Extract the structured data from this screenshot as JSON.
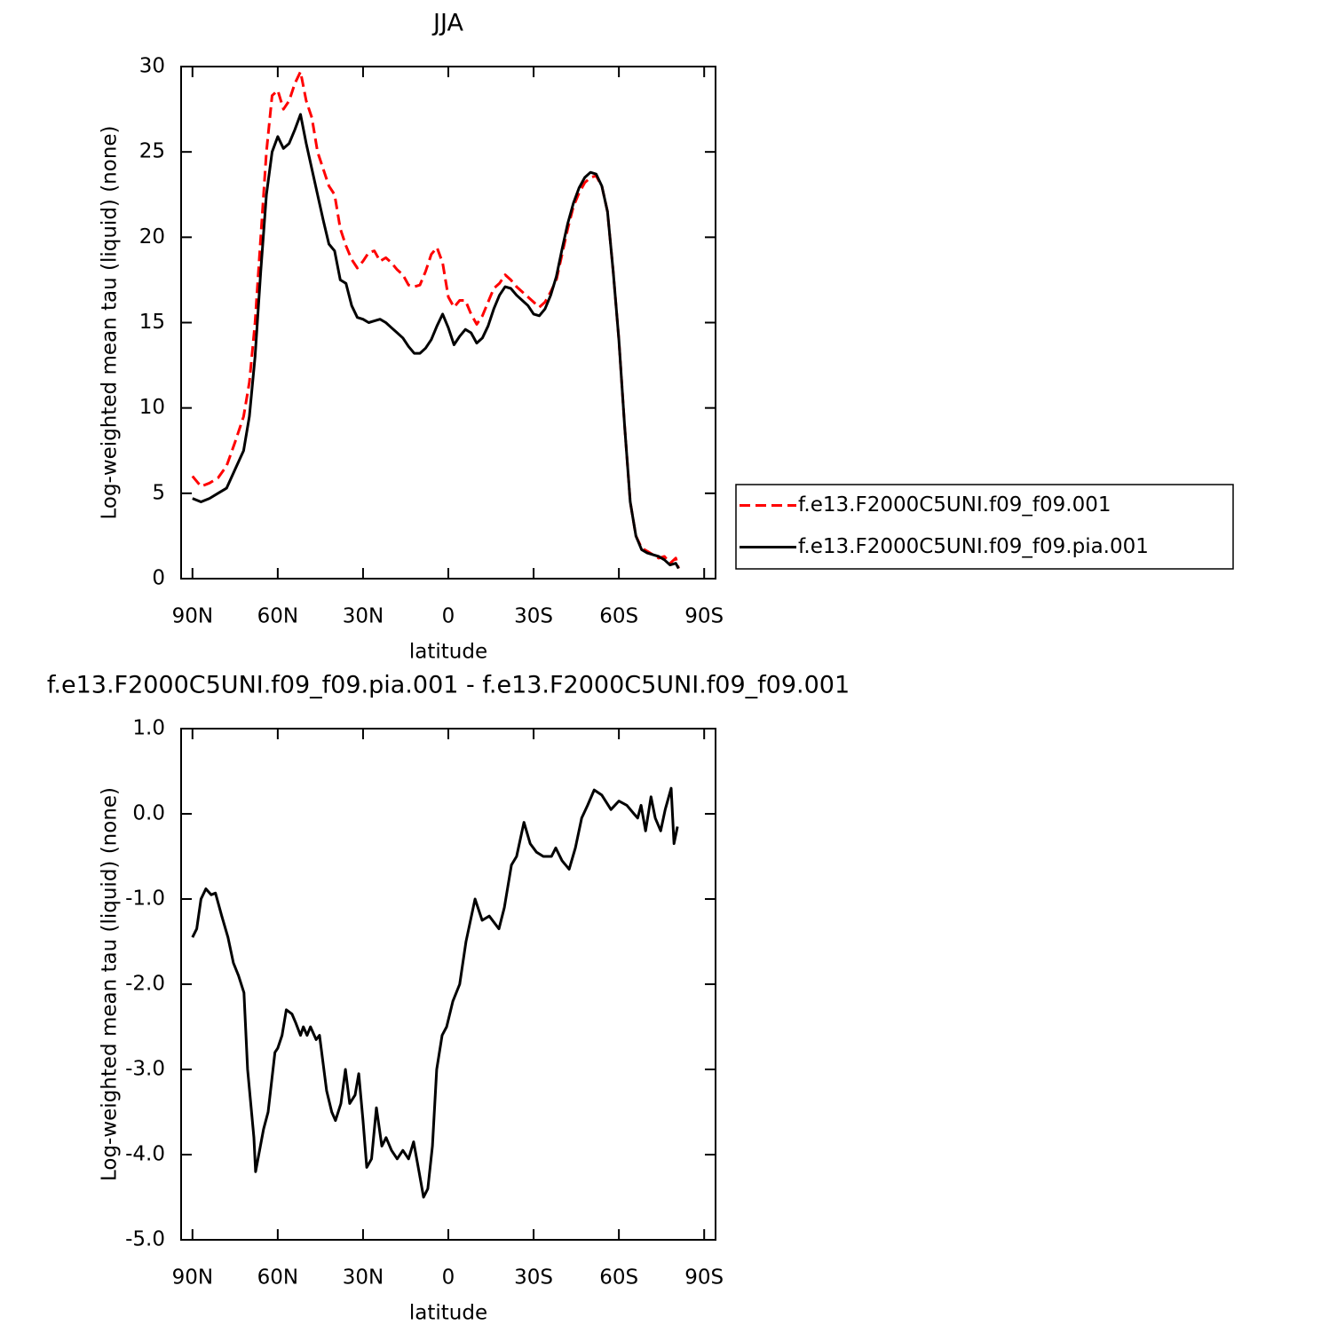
{
  "chart_data": [
    {
      "type": "line",
      "title": "JJA",
      "xlabel": "latitude",
      "ylabel": "Log-weighted mean tau (liquid) (none)",
      "x": [
        90,
        87,
        84,
        81,
        78,
        75,
        72,
        70,
        68,
        66,
        64,
        62,
        60,
        58,
        56,
        54,
        52,
        50,
        48,
        46,
        44,
        42,
        40,
        38,
        36,
        34,
        32,
        30,
        28,
        26,
        24,
        22,
        20,
        18,
        16,
        14,
        12,
        10,
        8,
        6,
        4,
        2,
        0,
        -2,
        -4,
        -6,
        -8,
        -10,
        -12,
        -14,
        -16,
        -18,
        -20,
        -22,
        -24,
        -26,
        -28,
        -30,
        -32,
        -34,
        -36,
        -38,
        -40,
        -42,
        -44,
        -46,
        -48,
        -50,
        -52,
        -54,
        -56,
        -58,
        -60,
        -62,
        -64,
        -66,
        -68,
        -70,
        -72,
        -74,
        -76,
        -78,
        -80,
        -81
      ],
      "series": [
        {
          "name": "f.e13.F2000C5UNI.f09_f09.001",
          "color": "#ff0000",
          "line_style": "dashed",
          "values": [
            6.0,
            5.4,
            5.6,
            5.9,
            6.6,
            8.0,
            9.5,
            11.5,
            15,
            20,
            25,
            28.3,
            28.6,
            27.5,
            28,
            29,
            29.7,
            28,
            27,
            25,
            24,
            23,
            22.5,
            20.5,
            19.5,
            18.7,
            18.2,
            18.6,
            19.1,
            19.2,
            18.6,
            18.8,
            18.5,
            18.1,
            17.8,
            17.2,
            17.1,
            17.2,
            18,
            19,
            19.4,
            18.5,
            16.5,
            15.9,
            16.3,
            16.3,
            15.5,
            14.9,
            15.4,
            16.2,
            17,
            17.3,
            17.8,
            17.5,
            17.1,
            16.8,
            16.5,
            16.2,
            15.9,
            16.2,
            16.8,
            17.5,
            19,
            20.5,
            21.8,
            22.6,
            23.2,
            23.5,
            23.6,
            23,
            21.5,
            18,
            14,
            9,
            4.5,
            2.5,
            1.8,
            1.6,
            1.4,
            1.2,
            1.3,
            0.9,
            1.2,
            0.6
          ]
        },
        {
          "name": "f.e13.F2000C5UNI.f09_f09.pia.001",
          "color": "#000000",
          "line_style": "solid",
          "values": [
            4.7,
            4.5,
            4.7,
            5.0,
            5.3,
            6.4,
            7.5,
            9.5,
            13,
            18,
            22.5,
            25,
            25.9,
            25.2,
            25.5,
            26.3,
            27.2,
            25.5,
            24,
            22.5,
            21,
            19.6,
            19.2,
            17.5,
            17.3,
            16,
            15.3,
            15.2,
            15,
            15.1,
            15.2,
            15.0,
            14.7,
            14.4,
            14.1,
            13.6,
            13.2,
            13.2,
            13.5,
            14,
            14.8,
            15.5,
            14.7,
            13.7,
            14.2,
            14.6,
            14.4,
            13.8,
            14.1,
            14.8,
            15.8,
            16.6,
            17.1,
            17,
            16.6,
            16.3,
            16.0,
            15.5,
            15.4,
            15.8,
            16.6,
            17.7,
            19.3,
            20.8,
            22,
            22.9,
            23.5,
            23.8,
            23.7,
            23,
            21.5,
            18,
            14,
            9,
            4.5,
            2.5,
            1.7,
            1.5,
            1.4,
            1.3,
            1.1,
            0.8,
            0.9,
            0.6
          ]
        }
      ],
      "xlim": [
        94,
        -94
      ],
      "xticks": [
        {
          "value": 90,
          "label": "90N"
        },
        {
          "value": 60,
          "label": "60N"
        },
        {
          "value": 30,
          "label": "30N"
        },
        0,
        {
          "value": -30,
          "label": "30S"
        },
        {
          "value": -60,
          "label": "60S"
        },
        {
          "value": -90,
          "label": "90S"
        }
      ],
      "ylim": [
        0,
        30
      ],
      "yticks": [
        0,
        5,
        10,
        15,
        20,
        25,
        30
      ],
      "grid": false,
      "legend": "right"
    },
    {
      "type": "line",
      "title": "f.e13.F2000C5UNI.f09_f09.pia.001 - f.e13.F2000C5UNI.f09_f09.001",
      "xlabel": "latitude",
      "ylabel": "Log-weighted mean tau (liquid) (none)",
      "x": [
        90,
        88.5,
        87,
        85.3,
        83.4,
        81.9,
        79.7,
        77.5,
        75.6,
        73.8,
        71.9,
        70.6,
        68.4,
        67.8,
        65,
        63.4,
        61,
        60,
        58.5,
        57,
        55,
        53.7,
        52,
        51,
        49.7,
        48.5,
        46.5,
        45.3,
        42.8,
        41,
        39.7,
        37.8,
        36.2,
        34.7,
        32.8,
        31.5,
        30,
        28.7,
        27,
        25.3,
        23.4,
        21.9,
        20,
        18,
        16,
        14,
        12.2,
        10.3,
        8.7,
        7.2,
        5.6,
        4.1,
        2.2,
        0.6,
        -1.6,
        -4,
        -6.2,
        -7.8,
        -9.4,
        -11.9,
        -14.4,
        -17.8,
        -19.7,
        -22.2,
        -24,
        -26.6,
        -28.8,
        -31,
        -33.4,
        -36.3,
        -37.8,
        -40,
        -42.5,
        -44.7,
        -46.9,
        -49,
        -51.3,
        -54,
        -57.2,
        -60,
        -62.8,
        -65.3,
        -66.6,
        -67.8,
        -69.4,
        -71.3,
        -72.8,
        -74.7,
        -76.3,
        -78.4,
        -79.4,
        -80.6
      ],
      "values": [
        -1.45,
        -1.35,
        -1.0,
        -0.88,
        -0.95,
        -0.93,
        -1.2,
        -1.45,
        -1.75,
        -1.9,
        -2.1,
        -3.0,
        -3.8,
        -4.2,
        -3.7,
        -3.5,
        -2.8,
        -2.75,
        -2.6,
        -2.3,
        -2.35,
        -2.45,
        -2.6,
        -2.5,
        -2.6,
        -2.5,
        -2.65,
        -2.6,
        -3.25,
        -3.5,
        -3.6,
        -3.4,
        -3.0,
        -3.4,
        -3.3,
        -3.05,
        -3.6,
        -4.15,
        -4.05,
        -3.45,
        -3.9,
        -3.8,
        -3.95,
        -4.05,
        -3.95,
        -4.05,
        -3.85,
        -4.2,
        -4.5,
        -4.4,
        -3.9,
        -3.0,
        -2.6,
        -2.5,
        -2.2,
        -2.0,
        -1.5,
        -1.25,
        -1.0,
        -1.25,
        -1.2,
        -1.35,
        -1.1,
        -0.6,
        -0.5,
        -0.1,
        -0.35,
        -0.45,
        -0.5,
        -0.5,
        -0.4,
        -0.55,
        -0.65,
        -0.4,
        -0.05,
        0.1,
        0.28,
        0.22,
        0.05,
        0.15,
        0.1,
        0.0,
        -0.05,
        0.1,
        -0.2,
        0.2,
        -0.05,
        -0.2,
        0.05,
        0.3,
        -0.35,
        -0.15
      ],
      "color": "#000000",
      "xlim": [
        94,
        -94
      ],
      "xticks": [
        {
          "value": 90,
          "label": "90N"
        },
        {
          "value": 60,
          "label": "60N"
        },
        {
          "value": 30,
          "label": "30N"
        },
        0,
        {
          "value": -30,
          "label": "30S"
        },
        {
          "value": -60,
          "label": "60S"
        },
        {
          "value": -90,
          "label": "90S"
        }
      ],
      "ylim": [
        -5,
        1
      ],
      "yticks": [
        {
          "value": -5,
          "label": "-5.0"
        },
        {
          "value": -4,
          "label": "-4.0"
        },
        {
          "value": -3,
          "label": "-3.0"
        },
        {
          "value": -2,
          "label": "-2.0"
        },
        {
          "value": -1,
          "label": "-1.0"
        },
        {
          "value": 0,
          "label": "0.0"
        },
        {
          "value": 1,
          "label": "1.0"
        }
      ],
      "grid": false
    }
  ]
}
